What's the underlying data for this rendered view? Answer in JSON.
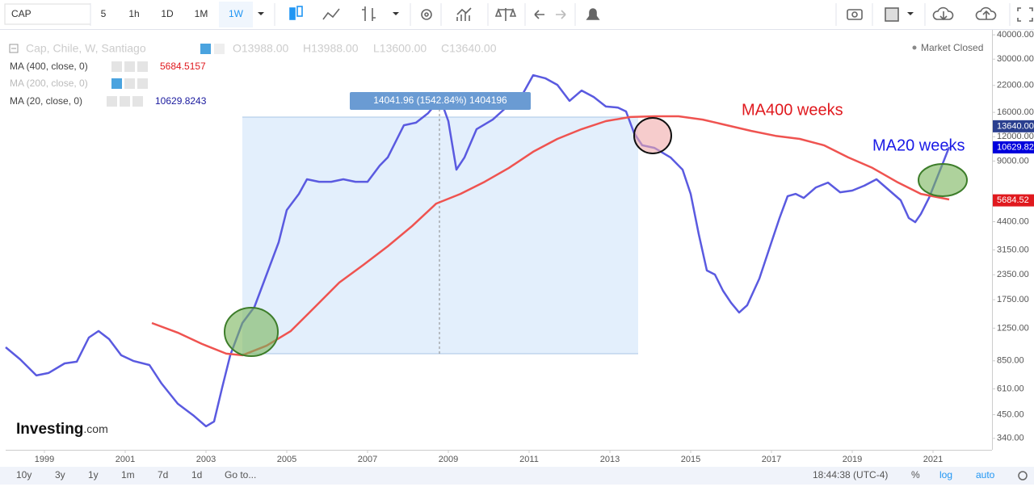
{
  "toolbar": {
    "symbol": "CAP",
    "intervals": [
      "5",
      "1h",
      "1D",
      "1M",
      "1W"
    ]
  },
  "legend": {
    "instrument": "Cap, Chile, W, Santiago",
    "ohlc": [
      "O13988.00",
      "H13988.00",
      "L13600.00",
      "C13640.00"
    ],
    "indicators": [
      {
        "name": "MA (400, close, 0)",
        "value": "5684.5157"
      },
      {
        "name": "MA (200, close, 0)"
      },
      {
        "name": "MA (20, close, 0)",
        "value": "10629.8243"
      }
    ],
    "status": "Market Closed"
  },
  "logo": {
    "brand": "Investing",
    "suffix": ".com"
  },
  "footer": {
    "ranges": [
      "10y",
      "3y",
      "1y",
      "1m",
      "7d",
      "1d"
    ],
    "goto": "Go to...",
    "time": "18:44:38 (UTC-4)",
    "percent": "%",
    "log": "log",
    "auto": "auto"
  },
  "chart_data": {
    "type": "line",
    "log_scale": true,
    "grid": false,
    "measure_label": "14041.96 (1542.84%) 1404196",
    "annotations": [
      "MA400 weeks",
      "MA20 weeks"
    ],
    "xlim": [
      1998.04,
      2022.46
    ],
    "xticks": [
      1999,
      2001,
      2003,
      2005,
      2007,
      2009,
      2011,
      2013,
      2015,
      2017,
      2019,
      2021
    ],
    "ylim": [
      297,
      41200
    ],
    "yticks": [
      {
        "value": 340,
        "label": "340.00"
      },
      {
        "value": 450,
        "label": "450.00"
      },
      {
        "value": 610,
        "label": "610.00"
      },
      {
        "value": 850,
        "label": "850.00"
      },
      {
        "value": 1250,
        "label": "1250.00"
      },
      {
        "value": 1750,
        "label": "1750.00"
      },
      {
        "value": 2350,
        "label": "2350.00"
      },
      {
        "value": 3150,
        "label": "3150.00"
      },
      {
        "value": 4400,
        "label": "4400.00"
      },
      {
        "value": 9000,
        "label": "9000.00"
      },
      {
        "value": 12000,
        "label": "12000.00"
      },
      {
        "value": 16000,
        "label": "16000.00"
      },
      {
        "value": 22000,
        "label": "22000.00"
      },
      {
        "value": 30000,
        "label": "30000.00"
      },
      {
        "value": 40000,
        "label": "40000.00"
      }
    ],
    "price_labels": [
      {
        "value": 13640,
        "label": "13640.00",
        "color": "#2a3f8f"
      },
      {
        "value": 10629.82,
        "label": "10629.82",
        "color": "#0000dd"
      },
      {
        "value": 5684.52,
        "label": "5684.52",
        "color": "#e0191e"
      }
    ],
    "series": [
      {
        "name": "MA (20, close, 0)",
        "color": "#5a5ae0",
        "x": [
          1998.04,
          1998.4,
          1998.8,
          1999.1,
          1999.5,
          1999.8,
          2000.1,
          2000.34,
          2000.6,
          2000.9,
          2001.2,
          2001.6,
          2001.9,
          2002.3,
          2002.7,
          2003.0,
          2003.2,
          2003.4,
          2003.6,
          2003.9,
          2004.2,
          2004.5,
          2004.8,
          2005.0,
          2005.3,
          2005.5,
          2005.8,
          2006.1,
          2006.4,
          2006.7,
          2007.0,
          2007.3,
          2007.5,
          2007.9,
          2008.2,
          2008.5,
          2008.8,
          2009.0,
          2009.2,
          2009.4,
          2009.7,
          2010.1,
          2010.5,
          2010.8,
          2011.1,
          2011.4,
          2011.7,
          2012.0,
          2012.3,
          2012.6,
          2012.9,
          2013.2,
          2013.4,
          2013.6,
          2013.8,
          2014.1,
          2014.5,
          2014.8,
          2015.0,
          2015.2,
          2015.4,
          2015.6,
          2015.8,
          2016.0,
          2016.2,
          2016.4,
          2016.7,
          2017.0,
          2017.2,
          2017.4,
          2017.6,
          2017.8,
          2018.1,
          2018.4,
          2018.7,
          2019.0,
          2019.3,
          2019.6,
          2019.9,
          2020.2,
          2020.4,
          2020.56,
          2020.7,
          2020.9,
          2021.1,
          2021.26,
          2021.4
        ],
        "values": [
          998,
          865,
          715,
          736,
          824,
          841,
          1119,
          1208,
          1099,
          908,
          849,
          809,
          650,
          512,
          444,
          392,
          415,
          619,
          908,
          1328,
          1607,
          2355,
          3451,
          5047,
          6109,
          7261,
          7047,
          7047,
          7261,
          7047,
          7047,
          8531,
          9397,
          13740,
          14160,
          15850,
          18840,
          14420,
          8128,
          9397,
          13120,
          14690,
          17460,
          19190,
          24830,
          23930,
          22130,
          18320,
          20700,
          19190,
          17140,
          16940,
          16180,
          12500,
          10840,
          10520,
          9397,
          8128,
          6109,
          3793,
          2472,
          2355,
          1945,
          1687,
          1503,
          1640,
          2244,
          3451,
          4592,
          5943,
          6109,
          5821,
          6592,
          6982,
          6223,
          6353,
          6730,
          7261,
          6412,
          5662,
          4592,
          4375,
          4819,
          5821,
          7396,
          8954,
          10620
        ]
      },
      {
        "name": "MA (400, close, 0)",
        "color": "#ef5350",
        "x": [
          2001.66,
          2002.3,
          2002.9,
          2003.5,
          2003.9,
          2004.5,
          2005.1,
          2005.7,
          2006.3,
          2006.9,
          2007.5,
          2008.1,
          2008.7,
          2009.3,
          2009.9,
          2010.5,
          2011.1,
          2011.7,
          2012.3,
          2012.9,
          2013.5,
          2014.1,
          2014.7,
          2015.3,
          2015.9,
          2016.5,
          2017.1,
          2017.7,
          2018.3,
          2018.9,
          2019.5,
          2020.1,
          2020.7,
          2021.4
        ],
        "values": [
          1328,
          1186,
          1037,
          925,
          908,
          1016,
          1208,
          1607,
          2143,
          2642,
          3289,
          4169,
          5445,
          6109,
          7047,
          8299,
          10050,
          11690,
          13120,
          14420,
          15140,
          15280,
          15280,
          14690,
          13740,
          12850,
          12130,
          11690,
          10840,
          9397,
          8299,
          7047,
          6109,
          5715
        ]
      }
    ]
  }
}
